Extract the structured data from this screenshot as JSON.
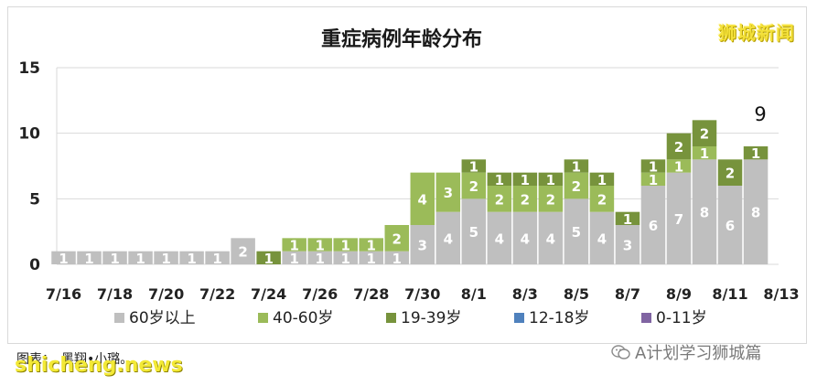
{
  "brand": "狮城新闻",
  "credit": "图表：　黑翔•小璐。",
  "watermark_left": "shicheng.news",
  "watermark_right": "A计划学习狮城篇",
  "wechat_icon": "wechat-icon",
  "chart_data": {
    "type": "bar",
    "stacked": true,
    "title": "重症病例年龄分布",
    "ylim": [
      0,
      15
    ],
    "yticks": [
      "0",
      "5",
      "10",
      "15"
    ],
    "x_tick_labels": [
      "7/16",
      "7/18",
      "7/20",
      "7/22",
      "7/24",
      "7/26",
      "7/28",
      "7/30",
      "8/1",
      "8/3",
      "8/5",
      "8/7",
      "8/9",
      "8/11",
      "8/13"
    ],
    "annotation": "9",
    "grid": true,
    "legend_position": "bottom",
    "categories": [
      "7/16",
      "7/17",
      "7/18",
      "7/19",
      "7/20",
      "7/21",
      "7/22",
      "7/23",
      "7/24",
      "7/25",
      "7/26",
      "7/27",
      "7/28",
      "7/29",
      "7/30",
      "7/31",
      "8/1",
      "8/2",
      "8/3",
      "8/4",
      "8/5",
      "8/6",
      "8/7",
      "8/8",
      "8/9",
      "8/10",
      "8/11",
      "8/12"
    ],
    "series": [
      {
        "name": "60岁以上",
        "color": "#bfbfbf",
        "values": [
          1,
          1,
          1,
          1,
          1,
          1,
          1,
          2,
          0,
          1,
          1,
          1,
          1,
          1,
          3,
          4,
          5,
          4,
          4,
          4,
          5,
          4,
          3,
          6,
          7,
          8,
          6,
          8
        ]
      },
      {
        "name": "40-60岁",
        "color": "#9bbb59",
        "values": [
          0,
          0,
          0,
          0,
          0,
          0,
          0,
          0,
          0,
          1,
          1,
          1,
          1,
          2,
          4,
          3,
          2,
          2,
          2,
          2,
          2,
          2,
          0,
          1,
          1,
          1,
          0,
          0
        ]
      },
      {
        "name": "19-39岁",
        "color": "#77933c",
        "values": [
          0,
          0,
          0,
          0,
          0,
          0,
          0,
          0,
          1,
          0,
          0,
          0,
          0,
          0,
          0,
          0,
          1,
          1,
          1,
          1,
          1,
          1,
          1,
          1,
          2,
          2,
          2,
          1
        ]
      },
      {
        "name": "12-18岁",
        "color": "#4f81bd",
        "values": [
          0,
          0,
          0,
          0,
          0,
          0,
          0,
          0,
          0,
          0,
          0,
          0,
          0,
          0,
          0,
          0,
          0,
          0,
          0,
          0,
          0,
          0,
          0,
          0,
          0,
          0,
          0,
          0
        ]
      },
      {
        "name": "0-11岁",
        "color": "#8064a2",
        "values": [
          0,
          0,
          0,
          0,
          0,
          0,
          0,
          0,
          0,
          0,
          0,
          0,
          0,
          0,
          0,
          0,
          0,
          0,
          0,
          0,
          0,
          0,
          0,
          0,
          0,
          0,
          0,
          0
        ]
      }
    ]
  }
}
